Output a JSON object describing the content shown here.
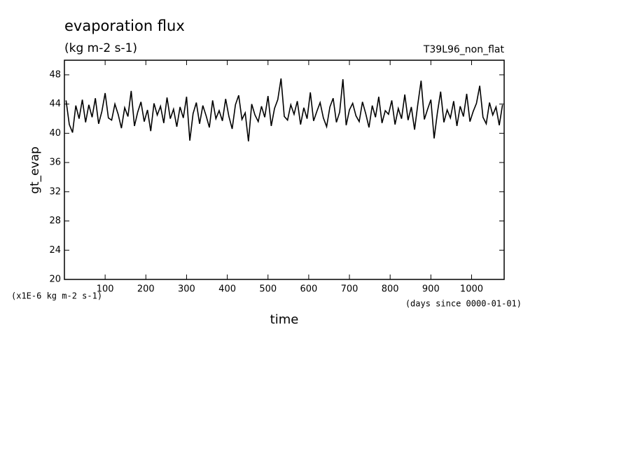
{
  "chart_data": {
    "type": "line",
    "title": "evaporation flux",
    "subtitle": "(kg m-2 s-1)",
    "experiment": "T39L96_non_flat",
    "ylabel": "gt_evap",
    "xlabel": "time",
    "yunit": "(x1E-6 kg m-2 s-1)",
    "xunit": "(days since 0000-01-01)",
    "xlim": [
      0,
      1080
    ],
    "ylim": [
      20,
      50
    ],
    "xticks": [
      100,
      200,
      300,
      400,
      500,
      600,
      700,
      800,
      900,
      1000
    ],
    "yticks": [
      20,
      24,
      28,
      32,
      36,
      40,
      44,
      48
    ],
    "color": "#000000",
    "x": [
      4,
      12,
      20,
      28,
      36,
      44,
      52,
      60,
      68,
      76,
      84,
      92,
      100,
      108,
      116,
      124,
      132,
      140,
      148,
      156,
      164,
      172,
      180,
      188,
      196,
      204,
      212,
      220,
      228,
      236,
      244,
      252,
      260,
      268,
      276,
      284,
      292,
      300,
      308,
      316,
      324,
      332,
      340,
      348,
      356,
      364,
      372,
      380,
      388,
      396,
      404,
      412,
      420,
      428,
      436,
      444,
      452,
      460,
      468,
      476,
      484,
      492,
      500,
      508,
      516,
      524,
      532,
      540,
      548,
      556,
      564,
      572,
      580,
      588,
      596,
      604,
      612,
      620,
      628,
      636,
      644,
      652,
      660,
      668,
      676,
      684,
      692,
      700,
      708,
      716,
      724,
      732,
      740,
      748,
      756,
      764,
      772,
      780,
      788,
      796,
      804,
      812,
      820,
      828,
      836,
      844,
      852,
      860,
      868,
      876,
      884,
      892,
      900,
      908,
      916,
      924,
      932,
      940,
      948,
      956,
      964,
      972,
      980,
      988,
      996,
      1004,
      1012,
      1020,
      1028,
      1036,
      1044,
      1052,
      1060,
      1068,
      1076
    ],
    "values": [
      44.5,
      41.2,
      40.1,
      43.8,
      42.0,
      44.6,
      41.5,
      43.9,
      42.2,
      44.8,
      41.3,
      43.0,
      45.5,
      42.1,
      41.8,
      44.0,
      42.6,
      40.7,
      43.5,
      42.3,
      45.8,
      41.0,
      42.9,
      44.3,
      41.6,
      43.2,
      40.3,
      44.1,
      42.5,
      43.7,
      41.4,
      44.9,
      42.0,
      43.3,
      40.9,
      43.6,
      42.1,
      45.0,
      39.0,
      42.7,
      44.2,
      41.3,
      43.8,
      42.4,
      40.8,
      44.5,
      42.0,
      43.1,
      41.7,
      44.7,
      42.3,
      40.6,
      43.9,
      45.2,
      41.9,
      42.8,
      38.9,
      44.0,
      42.5,
      41.6,
      43.7,
      42.2,
      45.1,
      41.0,
      43.4,
      44.6,
      47.5,
      42.3,
      41.8,
      43.9,
      42.6,
      44.4,
      41.2,
      43.5,
      42.0,
      45.6,
      41.7,
      43.0,
      44.2,
      42.1,
      40.9,
      43.6,
      44.8,
      41.5,
      42.9,
      47.4,
      41.1,
      43.2,
      44.1,
      42.4,
      41.6,
      44.3,
      42.7,
      40.8,
      43.8,
      42.2,
      45.0,
      41.4,
      43.1,
      42.6,
      44.5,
      41.2,
      43.4,
      42.0,
      45.3,
      41.8,
      43.6,
      40.5,
      44.0,
      47.2,
      41.9,
      43.3,
      44.6,
      39.3,
      42.8,
      45.7,
      41.5,
      43.2,
      42.1,
      44.4,
      41.0,
      43.7,
      42.3,
      45.4,
      41.6,
      43.0,
      44.1,
      46.5,
      42.2,
      41.3,
      44.2,
      42.5,
      43.6,
      41.1,
      43.9
    ]
  }
}
